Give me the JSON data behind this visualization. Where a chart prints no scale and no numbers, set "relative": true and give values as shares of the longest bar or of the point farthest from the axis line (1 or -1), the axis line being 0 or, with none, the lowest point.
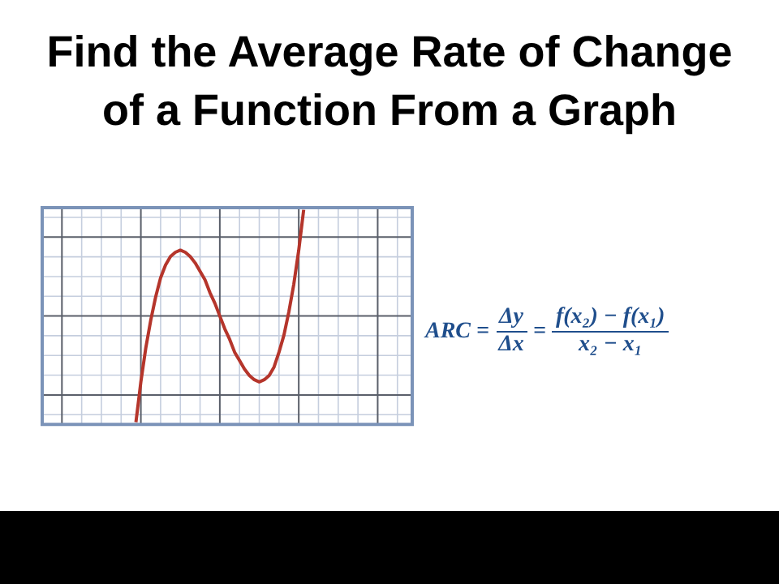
{
  "chart_data": {
    "type": "line",
    "title": "Find the Average Rate of Change of a Function From a Graph",
    "annotations": [
      "ARC =",
      "Δy",
      "Δx",
      "=",
      "f(x₂) − f(x₁)",
      "x₂ − x₁"
    ],
    "relative": true,
    "grid": true,
    "marker": "none",
    "line_style": "solid",
    "legend": false,
    "categories": [
      null,
      null,
      null,
      null,
      null,
      null,
      null,
      null,
      null,
      null,
      null,
      null,
      null,
      null,
      null,
      null,
      null,
      null,
      null,
      null,
      null,
      null,
      null,
      null,
      null,
      null,
      null,
      null,
      null,
      null,
      null,
      null,
      null,
      null,
      null,
      null,
      null,
      null,
      null,
      null,
      null,
      null,
      null,
      null,
      null,
      null,
      null,
      null,
      null,
      null,
      null,
      null,
      null,
      null,
      null,
      null,
      null,
      null,
      null,
      null,
      null,
      null,
      null,
      null,
      null,
      null,
      null,
      null,
      null,
      null,
      null,
      null,
      null,
      null,
      null,
      null
    ],
    "series": [
      {
        "color": "#b5352b",
        "values": [
          null,
          null,
          null,
          null,
          null,
          null,
          null,
          null,
          null,
          null,
          null,
          null,
          null,
          null,
          null,
          null,
          null,
          null,
          null,
          0,
          0.19,
          0.35,
          0.48,
          0.59,
          0.68,
          0.74,
          0.78,
          0.8,
          0.81,
          0.8,
          0.78,
          0.75,
          0.71,
          0.67,
          0.61,
          0.56,
          0.5,
          0.44,
          0.39,
          0.33,
          0.29,
          0.25,
          0.22,
          0.2,
          0.19,
          0.2,
          0.22,
          0.26,
          0.33,
          0.41,
          0.52,
          0.65,
          0.81,
          1,
          null,
          null,
          null,
          null,
          null,
          null,
          null,
          null,
          null,
          null,
          null,
          null,
          null,
          null,
          null,
          null,
          null,
          null,
          null,
          null,
          null,
          null
        ]
      }
    ]
  }
}
